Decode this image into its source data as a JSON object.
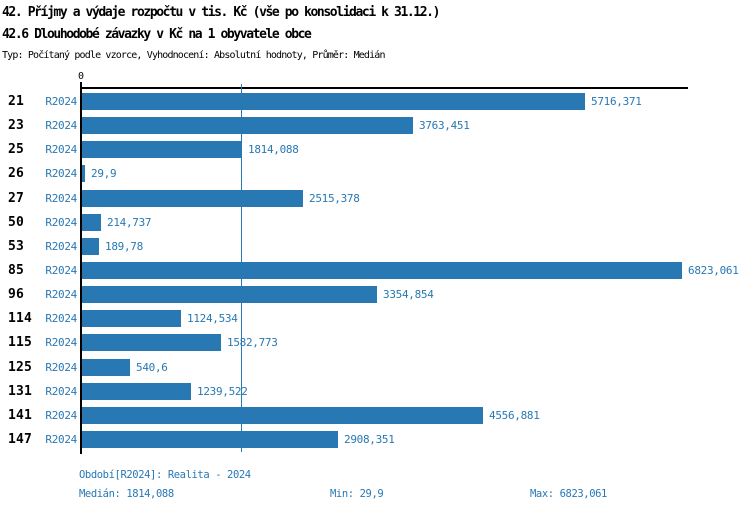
{
  "header": {
    "title1": "42. Příjmy a výdaje rozpočtu v tis. Kč (vše po konsolidaci k 31.12.)",
    "title2": "42.6 Dlouhodobé závazky v Kč na 1 obyvatele obce",
    "meta": "Typ: Počítaný podle vzorce, Vyhodnocení: Absolutní hodnoty, Průměr: Medián"
  },
  "chart_data": {
    "type": "bar",
    "orientation": "horizontal",
    "title": "42.6 Dlouhodobé závazky v Kč na 1 obyvatele obce",
    "xlabel": "",
    "ylabel": "",
    "xlim": [
      0,
      6823.061
    ],
    "grid": false,
    "legend_position": "none",
    "axis": {
      "zero_label": "0",
      "xmax_value": 6823.061
    },
    "median_value": 1814.088,
    "period_label": "R2024",
    "categories": [
      "21",
      "23",
      "25",
      "26",
      "27",
      "50",
      "53",
      "85",
      "96",
      "114",
      "115",
      "125",
      "131",
      "141",
      "147"
    ],
    "series": [
      {
        "name": "R2024",
        "values": [
          5716.371,
          3763.451,
          1814.088,
          29.9,
          2515.378,
          214.737,
          189.78,
          6823.061,
          3354.854,
          1124.534,
          1582.773,
          540.6,
          1239.522,
          4556.881,
          2908.351
        ]
      }
    ],
    "rows": [
      {
        "category": "21",
        "period": "R2024",
        "value": 5716.371,
        "label": "5716,371"
      },
      {
        "category": "23",
        "period": "R2024",
        "value": 3763.451,
        "label": "3763,451"
      },
      {
        "category": "25",
        "period": "R2024",
        "value": 1814.088,
        "label": "1814,088"
      },
      {
        "category": "26",
        "period": "R2024",
        "value": 29.9,
        "label": "29,9"
      },
      {
        "category": "27",
        "period": "R2024",
        "value": 2515.378,
        "label": "2515,378"
      },
      {
        "category": "50",
        "period": "R2024",
        "value": 214.737,
        "label": "214,737"
      },
      {
        "category": "53",
        "period": "R2024",
        "value": 189.78,
        "label": "189,78"
      },
      {
        "category": "85",
        "period": "R2024",
        "value": 6823.061,
        "label": "6823,061"
      },
      {
        "category": "96",
        "period": "R2024",
        "value": 3354.854,
        "label": "3354,854"
      },
      {
        "category": "114",
        "period": "R2024",
        "value": 1124.534,
        "label": "1124,534"
      },
      {
        "category": "115",
        "period": "R2024",
        "value": 1582.773,
        "label": "1582,773"
      },
      {
        "category": "125",
        "period": "R2024",
        "value": 540.6,
        "label": "540,6"
      },
      {
        "category": "131",
        "period": "R2024",
        "value": 1239.522,
        "label": "1239,522"
      },
      {
        "category": "141",
        "period": "R2024",
        "value": 4556.881,
        "label": "4556,881"
      },
      {
        "category": "147",
        "period": "R2024",
        "value": 2908.351,
        "label": "2908,351"
      }
    ]
  },
  "footer": {
    "period_line": "Období[R2024]: Realita - 2024",
    "median": "Medián: 1814,088",
    "min": "Min: 29,9",
    "max": "Max: 6823,061"
  },
  "colors": {
    "bar": "#2878b4",
    "text_blue": "#2878b4",
    "text_black": "#000000"
  }
}
